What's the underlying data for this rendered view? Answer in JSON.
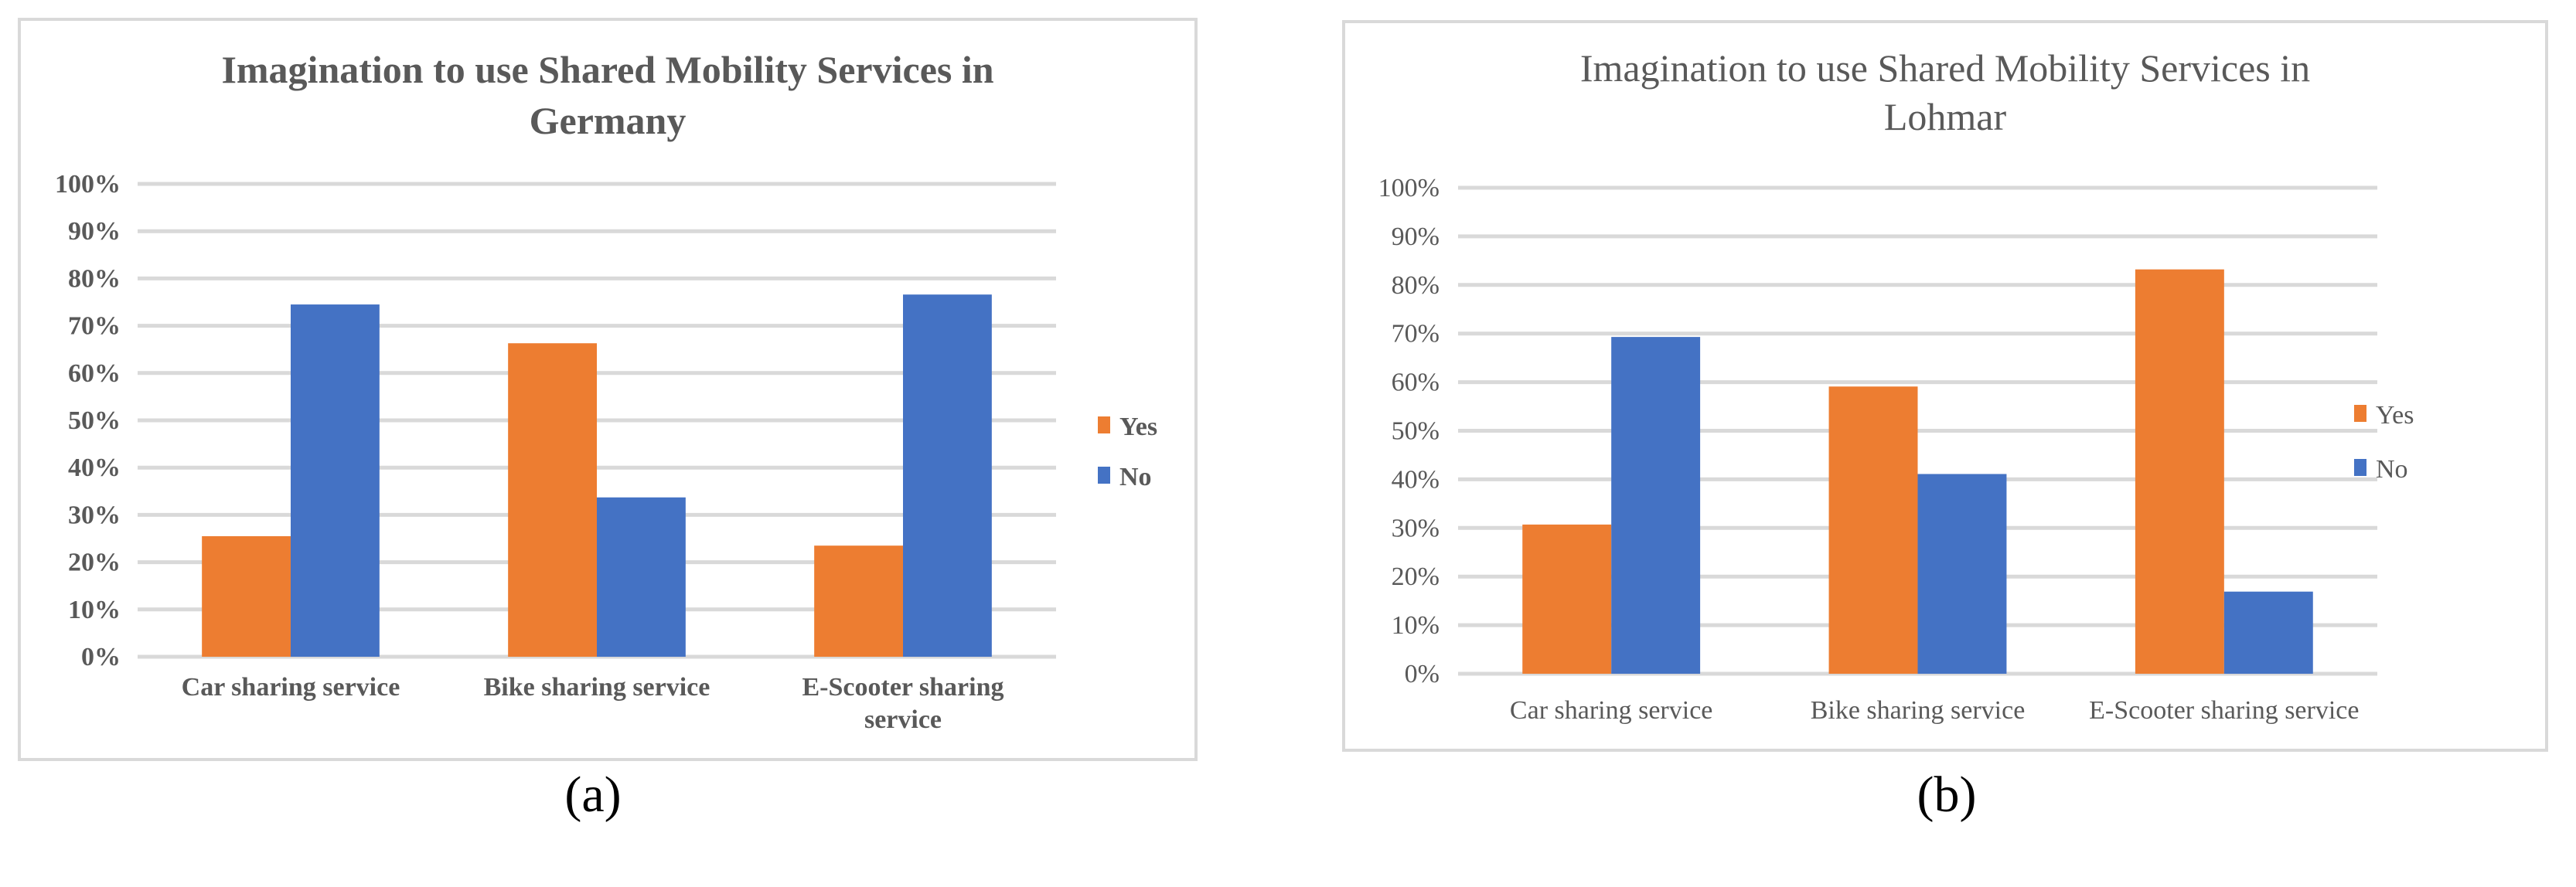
{
  "colors": {
    "yes": "#ED7D31",
    "no": "#4472C4",
    "grid": "#D9D9D9",
    "text": "#595959",
    "frame": "#D9D9D9"
  },
  "chart_data": [
    {
      "type": "bar",
      "panel_label": "(a)",
      "title_lines": [
        "Imagination to use Shared Mobility Services in",
        "Germany"
      ],
      "categories": [
        [
          "Car sharing service"
        ],
        [
          "Bike sharing service"
        ],
        [
          "E-Scooter sharing",
          "service"
        ]
      ],
      "series": [
        {
          "name": "Yes",
          "values": [
            25.5,
            66.3,
            23.5
          ]
        },
        {
          "name": "No",
          "values": [
            74.5,
            33.7,
            76.6
          ]
        }
      ],
      "yticks": [
        "0%",
        "10%",
        "20%",
        "30%",
        "40%",
        "50%",
        "60%",
        "70%",
        "80%",
        "90%",
        "100%"
      ],
      "ylim": [
        0,
        100
      ],
      "unit": "%",
      "grid": true,
      "legend": "right",
      "bold": true
    },
    {
      "type": "bar",
      "panel_label": "(b)",
      "title_lines": [
        "Imagination to use Shared Mobility Services in",
        "Lohmar"
      ],
      "categories": [
        [
          "Car sharing service"
        ],
        [
          "Bike sharing service"
        ],
        [
          "E-Scooter sharing service"
        ]
      ],
      "series": [
        {
          "name": "Yes",
          "values": [
            30.7,
            59.1,
            83.2
          ]
        },
        {
          "name": "No",
          "values": [
            69.3,
            41.1,
            16.9
          ]
        }
      ],
      "yticks": [
        "0%",
        "10%",
        "20%",
        "30%",
        "40%",
        "50%",
        "60%",
        "70%",
        "80%",
        "90%",
        "100%"
      ],
      "ylim": [
        0,
        100
      ],
      "unit": "%",
      "grid": true,
      "legend": "right",
      "bold": false
    }
  ]
}
